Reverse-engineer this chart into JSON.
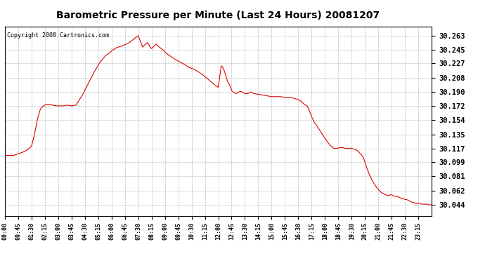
{
  "title": "Barometric Pressure per Minute (Last 24 Hours) 20081207",
  "copyright_text": "Copyright 2008 Cartronics.com",
  "line_color": "#dd0000",
  "background_color": "#ffffff",
  "plot_bg_color": "#ffffff",
  "grid_color": "#bbbbbb",
  "yticks": [
    30.044,
    30.062,
    30.081,
    30.099,
    30.117,
    30.135,
    30.154,
    30.172,
    30.19,
    30.208,
    30.227,
    30.245,
    30.263
  ],
  "ylim": [
    30.03,
    30.275
  ],
  "xtick_labels": [
    "00:00",
    "00:45",
    "01:30",
    "02:15",
    "03:00",
    "03:45",
    "04:30",
    "05:15",
    "06:00",
    "06:45",
    "07:30",
    "08:15",
    "09:00",
    "09:45",
    "10:30",
    "11:15",
    "12:00",
    "12:45",
    "13:30",
    "14:15",
    "15:00",
    "15:45",
    "16:30",
    "17:15",
    "18:00",
    "18:45",
    "19:30",
    "20:15",
    "21:00",
    "21:45",
    "22:30",
    "23:15"
  ],
  "control_points": [
    [
      0,
      30.108
    ],
    [
      30,
      30.108
    ],
    [
      45,
      30.11
    ],
    [
      60,
      30.112
    ],
    [
      75,
      30.115
    ],
    [
      90,
      30.12
    ],
    [
      100,
      30.135
    ],
    [
      110,
      30.155
    ],
    [
      120,
      30.168
    ],
    [
      130,
      30.172
    ],
    [
      140,
      30.174
    ],
    [
      150,
      30.174
    ],
    [
      160,
      30.173
    ],
    [
      175,
      30.172
    ],
    [
      195,
      30.172
    ],
    [
      210,
      30.173
    ],
    [
      225,
      30.172
    ],
    [
      240,
      30.173
    ],
    [
      260,
      30.185
    ],
    [
      280,
      30.2
    ],
    [
      300,
      30.215
    ],
    [
      320,
      30.228
    ],
    [
      340,
      30.237
    ],
    [
      360,
      30.243
    ],
    [
      375,
      30.247
    ],
    [
      390,
      30.249
    ],
    [
      405,
      30.251
    ],
    [
      420,
      30.254
    ],
    [
      430,
      30.257
    ],
    [
      440,
      30.26
    ],
    [
      450,
      30.263
    ],
    [
      455,
      30.258
    ],
    [
      460,
      30.253
    ],
    [
      465,
      30.248
    ],
    [
      470,
      30.25
    ],
    [
      475,
      30.252
    ],
    [
      480,
      30.254
    ],
    [
      485,
      30.252
    ],
    [
      490,
      30.248
    ],
    [
      495,
      30.246
    ],
    [
      500,
      30.248
    ],
    [
      505,
      30.25
    ],
    [
      510,
      30.252
    ],
    [
      515,
      30.25
    ],
    [
      525,
      30.247
    ],
    [
      535,
      30.244
    ],
    [
      545,
      30.24
    ],
    [
      560,
      30.236
    ],
    [
      575,
      30.232
    ],
    [
      590,
      30.229
    ],
    [
      605,
      30.226
    ],
    [
      620,
      30.222
    ],
    [
      635,
      30.22
    ],
    [
      650,
      30.217
    ],
    [
      665,
      30.213
    ],
    [
      675,
      30.21
    ],
    [
      690,
      30.205
    ],
    [
      705,
      30.2
    ],
    [
      720,
      30.196
    ],
    [
      730,
      30.224
    ],
    [
      735,
      30.222
    ],
    [
      740,
      30.218
    ],
    [
      745,
      30.212
    ],
    [
      750,
      30.205
    ],
    [
      760,
      30.198
    ],
    [
      765,
      30.192
    ],
    [
      770,
      30.19
    ],
    [
      780,
      30.188
    ],
    [
      790,
      30.19
    ],
    [
      795,
      30.191
    ],
    [
      800,
      30.19
    ],
    [
      810,
      30.188
    ],
    [
      820,
      30.188
    ],
    [
      825,
      30.189
    ],
    [
      830,
      30.19
    ],
    [
      835,
      30.189
    ],
    [
      840,
      30.188
    ],
    [
      855,
      30.187
    ],
    [
      870,
      30.186
    ],
    [
      885,
      30.185
    ],
    [
      900,
      30.184
    ],
    [
      915,
      30.184
    ],
    [
      930,
      30.184
    ],
    [
      945,
      30.183
    ],
    [
      960,
      30.183
    ],
    [
      975,
      30.182
    ],
    [
      990,
      30.18
    ],
    [
      1000,
      30.178
    ],
    [
      1010,
      30.174
    ],
    [
      1020,
      30.172
    ],
    [
      1025,
      30.168
    ],
    [
      1030,
      30.163
    ],
    [
      1035,
      30.158
    ],
    [
      1040,
      30.154
    ],
    [
      1045,
      30.15
    ],
    [
      1050,
      30.148
    ],
    [
      1060,
      30.142
    ],
    [
      1070,
      30.136
    ],
    [
      1080,
      30.13
    ],
    [
      1095,
      30.122
    ],
    [
      1110,
      30.117
    ],
    [
      1120,
      30.117
    ],
    [
      1130,
      30.118
    ],
    [
      1140,
      30.118
    ],
    [
      1150,
      30.117
    ],
    [
      1160,
      30.117
    ],
    [
      1170,
      30.117
    ],
    [
      1180,
      30.116
    ],
    [
      1190,
      30.114
    ],
    [
      1200,
      30.11
    ],
    [
      1210,
      30.105
    ],
    [
      1215,
      30.099
    ],
    [
      1220,
      30.093
    ],
    [
      1225,
      30.088
    ],
    [
      1230,
      30.083
    ],
    [
      1235,
      30.079
    ],
    [
      1240,
      30.075
    ],
    [
      1245,
      30.072
    ],
    [
      1250,
      30.069
    ],
    [
      1255,
      30.066
    ],
    [
      1260,
      30.064
    ],
    [
      1265,
      30.062
    ],
    [
      1270,
      30.06
    ],
    [
      1275,
      30.059
    ],
    [
      1280,
      30.058
    ],
    [
      1285,
      30.057
    ],
    [
      1290,
      30.056
    ],
    [
      1295,
      30.056
    ],
    [
      1300,
      30.057
    ],
    [
      1305,
      30.057
    ],
    [
      1310,
      30.056
    ],
    [
      1315,
      30.055
    ],
    [
      1320,
      30.055
    ],
    [
      1325,
      30.055
    ],
    [
      1330,
      30.054
    ],
    [
      1335,
      30.053
    ],
    [
      1340,
      30.052
    ],
    [
      1345,
      30.052
    ],
    [
      1350,
      30.051
    ],
    [
      1355,
      30.051
    ],
    [
      1360,
      30.05
    ],
    [
      1365,
      30.049
    ],
    [
      1370,
      30.048
    ],
    [
      1375,
      30.047
    ],
    [
      1380,
      30.047
    ],
    [
      1385,
      30.046
    ],
    [
      1390,
      30.046
    ],
    [
      1395,
      30.046
    ],
    [
      1400,
      30.046
    ],
    [
      1405,
      30.045
    ],
    [
      1410,
      30.045
    ],
    [
      1415,
      30.045
    ],
    [
      1420,
      30.045
    ],
    [
      1425,
      30.045
    ],
    [
      1430,
      30.044
    ],
    [
      1435,
      30.044
    ],
    [
      1440,
      30.044
    ]
  ]
}
